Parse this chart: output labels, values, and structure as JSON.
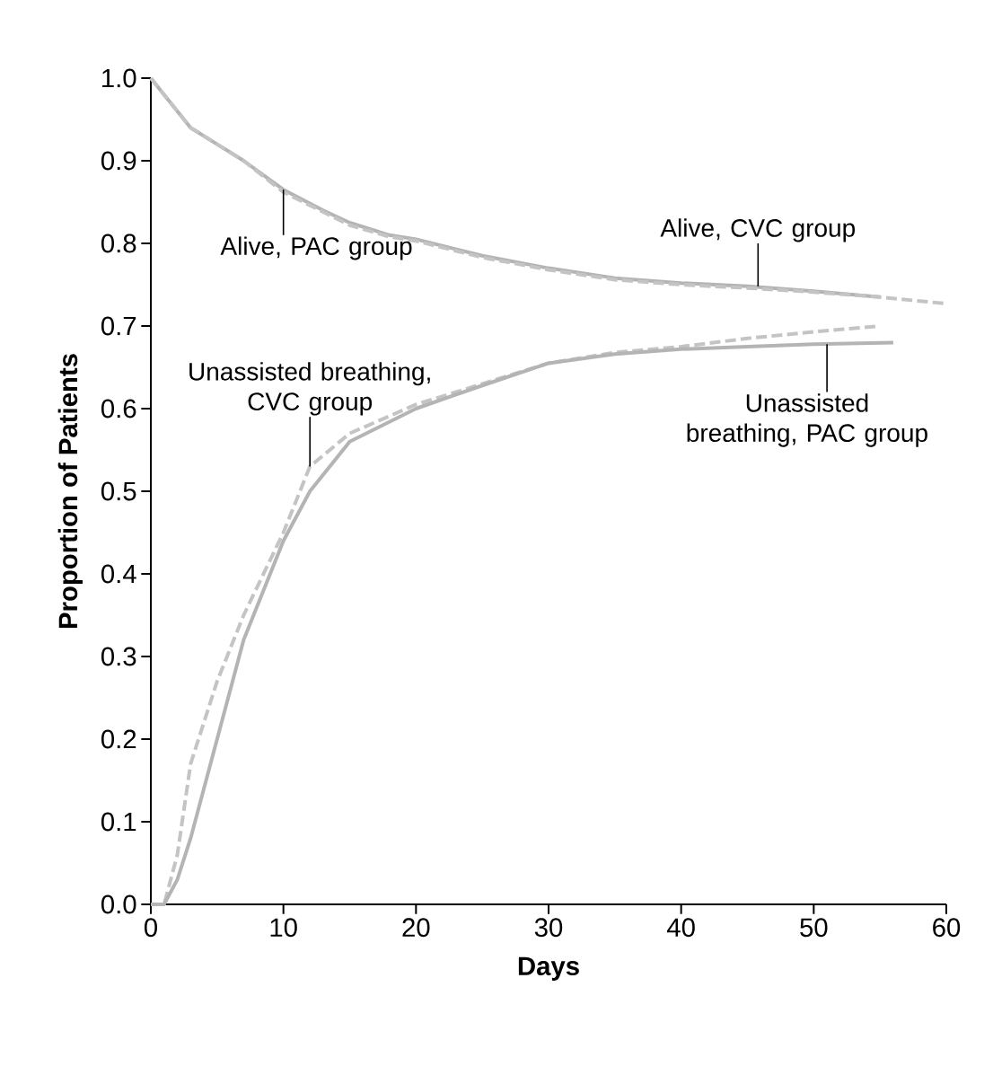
{
  "chart_data": {
    "type": "line",
    "xlabel": "Days",
    "ylabel": "Proportion of Patients",
    "xlim": [
      0,
      60
    ],
    "xticks": [
      0,
      10,
      20,
      30,
      40,
      50,
      60
    ],
    "ylim": [
      0,
      1
    ],
    "yticks": [
      {
        "value": 0,
        "label": "0.0"
      },
      {
        "value": 0.1,
        "label": "0.1"
      },
      {
        "value": 0.2,
        "label": "0.2"
      },
      {
        "value": 0.3,
        "label": "0.3"
      },
      {
        "value": 0.4,
        "label": "0.4"
      },
      {
        "value": 0.5,
        "label": "0.5"
      },
      {
        "value": 0.6,
        "label": "0.6"
      },
      {
        "value": 0.7,
        "label": "0.7"
      },
      {
        "value": 0.8,
        "label": "0.8"
      },
      {
        "value": 0.9,
        "label": "0.9"
      },
      {
        "value": 1,
        "label": "1.0"
      }
    ],
    "series": [
      {
        "color": "#b4b4b4",
        "line_style": "solid",
        "x": [
          0,
          1,
          3,
          5,
          7,
          10,
          13,
          15,
          18,
          20,
          25,
          30,
          35,
          40,
          45,
          50,
          55
        ],
        "values": [
          1.0,
          0.98,
          0.94,
          0.92,
          0.9,
          0.865,
          0.84,
          0.825,
          0.81,
          0.805,
          0.785,
          0.77,
          0.758,
          0.752,
          0.748,
          0.742,
          0.735
        ]
      },
      {
        "color": "#c4c4c4",
        "line_style": "dashed",
        "x": [
          0,
          1,
          3,
          5,
          7,
          10,
          13,
          15,
          18,
          20,
          25,
          30,
          35,
          40,
          45,
          50,
          55,
          60
        ],
        "values": [
          1.0,
          0.98,
          0.94,
          0.92,
          0.9,
          0.862,
          0.838,
          0.822,
          0.808,
          0.803,
          0.783,
          0.768,
          0.756,
          0.75,
          0.746,
          0.741,
          0.735,
          0.727
        ]
      },
      {
        "color": "#c4c4c4",
        "line_style": "dashed",
        "x": [
          0,
          1,
          2,
          3,
          5,
          7,
          10,
          12,
          15,
          20,
          25,
          30,
          35,
          40,
          45,
          50,
          55
        ],
        "values": [
          0,
          0,
          0.06,
          0.17,
          0.27,
          0.35,
          0.45,
          0.53,
          0.57,
          0.605,
          0.63,
          0.655,
          0.668,
          0.675,
          0.685,
          0.693,
          0.7
        ]
      },
      {
        "color": "#b4b4b4",
        "line_style": "solid",
        "x": [
          0,
          1,
          2,
          3,
          5,
          7,
          10,
          12,
          15,
          20,
          25,
          30,
          35,
          40,
          45,
          50,
          56
        ],
        "values": [
          0,
          0,
          0.03,
          0.08,
          0.2,
          0.32,
          0.44,
          0.5,
          0.56,
          0.6,
          0.628,
          0.655,
          0.666,
          0.672,
          0.675,
          0.678,
          0.68
        ]
      }
    ],
    "annotations": [
      {
        "text": "Alive, PAC group",
        "x": 10,
        "y": 0.865
      },
      {
        "text": "Alive, CVC group",
        "x": 45.8,
        "y": 0.748
      },
      {
        "text": "Unassisted breathing, CVC group",
        "x": 12,
        "y": 0.53
      },
      {
        "text": "Unassisted breathing, PAC group",
        "x": 51,
        "y": 0.678
      }
    ]
  }
}
